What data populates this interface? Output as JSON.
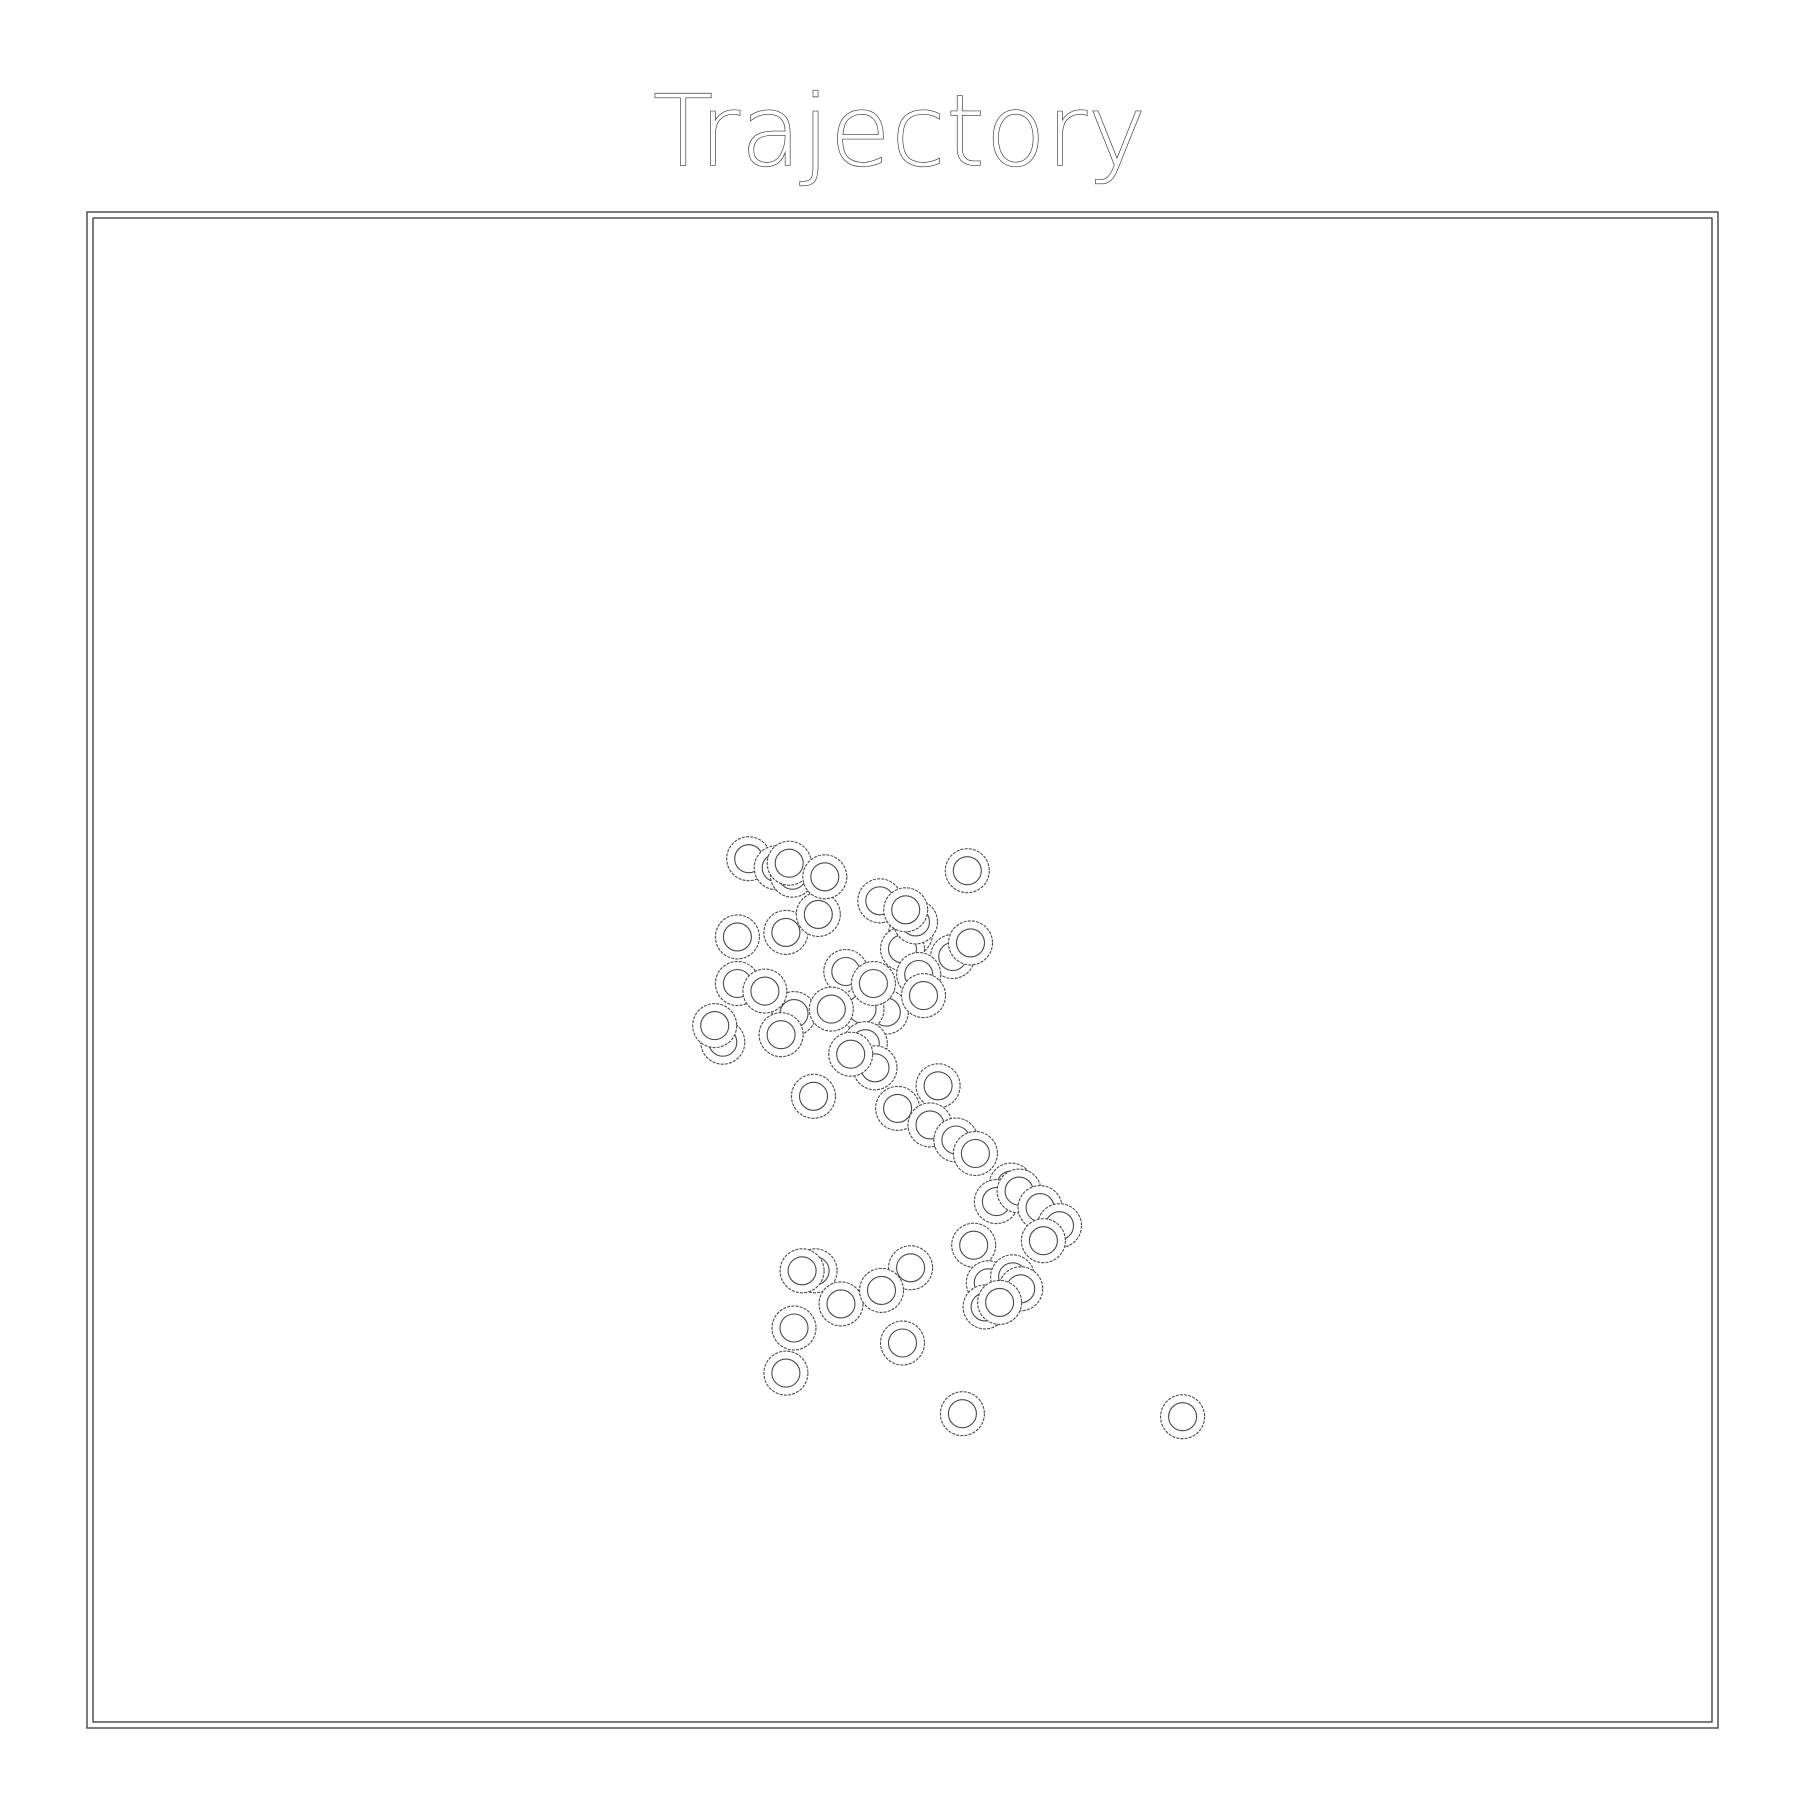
{
  "chart_data": {
    "type": "scatter",
    "title": "Trajectory",
    "xlabel": "",
    "ylabel": "",
    "xlim": [
      0,
      1
    ],
    "ylim": [
      0,
      1
    ],
    "grid": false,
    "legend": "none",
    "marker": "ring",
    "colors": {
      "background": "#ffffff",
      "stroke": "#4a4a4a",
      "frame": "#444444"
    },
    "series": [
      {
        "x": [
          0.405,
          0.422,
          0.432,
          0.43,
          0.398,
          0.428,
          0.448,
          0.452,
          0.486,
          0.505,
          0.5,
          0.508,
          0.531,
          0.542,
          0.51,
          0.49,
          0.54,
          0.502,
          0.465,
          0.475,
          0.513,
          0.482,
          0.433,
          0.456,
          0.477,
          0.398,
          0.415,
          0.425,
          0.389,
          0.384,
          0.445,
          0.483,
          0.468,
          0.522,
          0.497,
          0.517,
          0.533,
          0.545,
          0.567,
          0.558,
          0.572,
          0.585,
          0.597,
          0.587,
          0.544,
          0.553,
          0.568,
          0.573,
          0.551,
          0.56,
          0.433,
          0.446,
          0.462,
          0.438,
          0.505,
          0.5,
          0.537,
          0.673,
          0.428,
          0.487
        ],
        "y": [
          0.574,
          0.568,
          0.563,
          0.571,
          0.522,
          0.525,
          0.537,
          0.562,
          0.546,
          0.524,
          0.514,
          0.532,
          0.509,
          0.518,
          0.497,
          0.472,
          0.566,
          0.54,
          0.499,
          0.474,
          0.483,
          0.491,
          0.471,
          0.474,
          0.451,
          0.491,
          0.486,
          0.457,
          0.452,
          0.463,
          0.416,
          0.435,
          0.444,
          0.423,
          0.408,
          0.397,
          0.387,
          0.378,
          0.357,
          0.346,
          0.353,
          0.342,
          0.33,
          0.32,
          0.317,
          0.292,
          0.296,
          0.288,
          0.276,
          0.279,
          0.262,
          0.3,
          0.278,
          0.3,
          0.302,
          0.252,
          0.205,
          0.203,
          0.232,
          0.287
        ]
      }
    ]
  }
}
